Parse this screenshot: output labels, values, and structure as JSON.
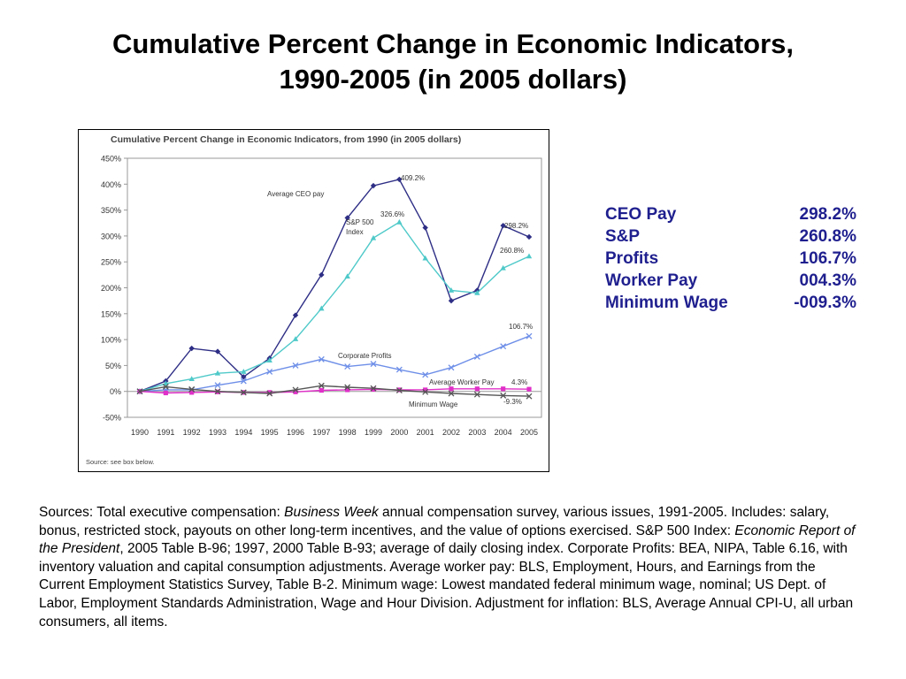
{
  "slide": {
    "title_line1": "Cumulative Percent Change in Economic Indicators,",
    "title_line2": "1990-2005 (in 2005 dollars)"
  },
  "colors": {
    "ceo": "#2e2e86",
    "sp500": "#4fc9c9",
    "profits": "#6e8fe8",
    "worker": "#e030c8",
    "minwage": "#555555",
    "summary_text": "#1f1f8f"
  },
  "summary": [
    {
      "label": "CEO Pay",
      "value": "298.2%"
    },
    {
      "label": "S&P",
      "value": "260.8%"
    },
    {
      "label": "Profits",
      "value": " 106.7%"
    },
    {
      "label": "Worker Pay",
      "value": " 004.3%"
    },
    {
      "label": "Minimum Wage",
      "value": "-009.3%"
    }
  ],
  "sources": {
    "s1": "Sources: Total executive compensation: ",
    "s1_italic": "Business Week",
    "s2": " annual compensation survey, various issues, 1991-2005. Includes: salary, bonus, restricted stock, payouts on other long-term incentives, and the value of options exercised. S&P 500 Index: ",
    "s2_italic": "Economic Report of the President",
    "s3": ", 2005 Table B-96; 1997, 2000 Table B-93; average of daily closing index. Corporate Profits: BEA, NIPA, Table 6.16, with inventory valuation and capital consumption adjustments. Average worker pay: BLS, Employment, Hours, and Earnings from the Current Employment Statistics Survey, Table B-2. Minimum wage: Lowest mandated federal minimum wage, nominal; US Dept. of Labor, Employment Standards Administration, Wage and Hour Division. Adjustment for inflation: BLS, Average Annual CPI-U, all urban consumers, all items."
  },
  "chart_data": {
    "type": "line",
    "title": "Cumulative Percent Change in Economic Indicators, from 1990 (in 2005 dollars)",
    "source_note": "Source: see box below.",
    "x": [
      "1990",
      "1991",
      "1992",
      "1993",
      "1994",
      "1995",
      "1996",
      "1997",
      "1998",
      "1999",
      "2000",
      "2001",
      "2002",
      "2003",
      "2004",
      "2005"
    ],
    "ylim": [
      -50,
      450
    ],
    "yticks": [
      -50,
      0,
      50,
      100,
      150,
      200,
      250,
      300,
      350,
      400,
      450
    ],
    "ytick_labels": [
      "-50%",
      "0%",
      "50%",
      "100%",
      "150%",
      "200%",
      "250%",
      "300%",
      "350%",
      "400%",
      "450%"
    ],
    "grid": false,
    "series": [
      {
        "key": "ceo",
        "name": "Average CEO pay",
        "label_line2": "",
        "marker": "diamond",
        "values": [
          0,
          20,
          83,
          77,
          28,
          64,
          147,
          225,
          335,
          397,
          409.2,
          316,
          175,
          195,
          320,
          298.2
        ]
      },
      {
        "key": "sp500",
        "name": "S&P 500",
        "label_line2": "Index",
        "marker": "triangle",
        "values": [
          0,
          15,
          24,
          35,
          38,
          60,
          101,
          160,
          222,
          296,
          326.6,
          257,
          195,
          190,
          238,
          260.8
        ]
      },
      {
        "key": "profits",
        "name": "Corporate Profits",
        "label_line2": "",
        "marker": "x",
        "values": [
          0,
          3,
          3,
          12,
          20,
          38,
          50,
          62,
          48,
          53,
          42,
          32,
          46,
          67,
          87,
          106.7
        ]
      },
      {
        "key": "worker",
        "name": "Average Worker Pay",
        "label_line2": "",
        "marker": "square",
        "values": [
          0,
          -3,
          -2,
          -1,
          -2,
          -2,
          -1,
          2,
          3,
          4,
          3,
          3,
          5,
          5,
          5,
          4.3
        ]
      },
      {
        "key": "minwage",
        "name": "Minimum Wage",
        "label_line2": "",
        "marker": "x",
        "values": [
          0,
          9,
          4,
          0,
          -2,
          -4,
          3,
          11,
          8,
          6,
          2,
          -1,
          -4,
          -6,
          -8,
          -9.3
        ]
      }
    ],
    "annotations": [
      "409.2%",
      "326.6%",
      "298.2%",
      "260.8%",
      "106.7%",
      "4.3%",
      "-9.3%"
    ]
  }
}
